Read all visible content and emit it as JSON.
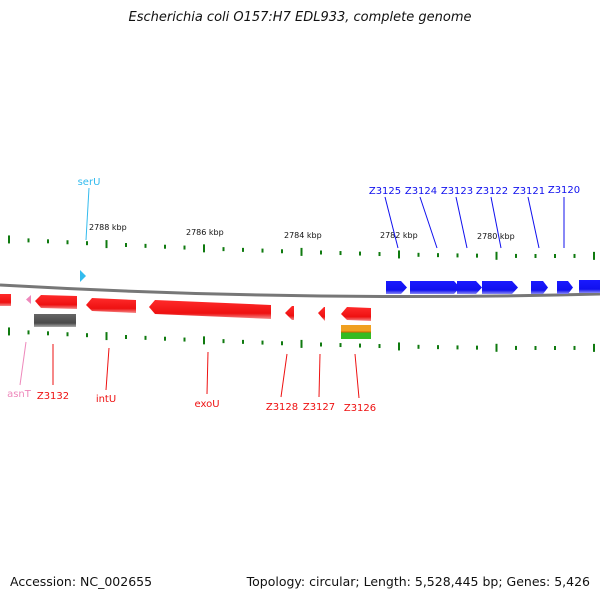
{
  "title": "Escherichia coli O157:H7 EDL933, complete genome",
  "footer": {
    "accession": "Accession: NC_002655",
    "stats": "Topology: circular; Length: 5,528,445 bp; Genes: 5,426"
  },
  "colors": {
    "forward_gene": "#1010ee",
    "reverse_gene": "#ee1111",
    "tRNA_forward": "#33bbee",
    "tRNA_reverse": "#ee88bb",
    "pseudo": "#555555",
    "tick": "#0f7a0f",
    "backbone": "#777777"
  },
  "scale": {
    "unit": "kbp",
    "labels": [
      {
        "text": "2788 kbp",
        "kbp": 2788
      },
      {
        "text": "2786 kbp",
        "kbp": 2786
      },
      {
        "text": "2784 kbp",
        "kbp": 2784
      },
      {
        "text": "2782 kbp",
        "kbp": 2782
      },
      {
        "text": "2780 kbp",
        "kbp": 2780
      }
    ]
  },
  "gene_labels": [
    {
      "name": "serU",
      "strand": "+",
      "kind": "tRNA"
    },
    {
      "name": "Z3125",
      "strand": "+",
      "kind": "gene"
    },
    {
      "name": "Z3124",
      "strand": "+",
      "kind": "gene"
    },
    {
      "name": "Z3123",
      "strand": "+",
      "kind": "gene"
    },
    {
      "name": "Z3122",
      "strand": "+",
      "kind": "gene"
    },
    {
      "name": "Z3121",
      "strand": "+",
      "kind": "gene"
    },
    {
      "name": "Z3120",
      "strand": "+",
      "kind": "gene"
    },
    {
      "name": "asnT",
      "strand": "-",
      "kind": "tRNA"
    },
    {
      "name": "Z3132",
      "strand": "-",
      "kind": "gene"
    },
    {
      "name": "intU",
      "strand": "-",
      "kind": "gene"
    },
    {
      "name": "exoU",
      "strand": "-",
      "kind": "gene"
    },
    {
      "name": "Z3128",
      "strand": "-",
      "kind": "gene"
    },
    {
      "name": "Z3127",
      "strand": "-",
      "kind": "gene"
    },
    {
      "name": "Z3126",
      "strand": "-",
      "kind": "gene"
    }
  ]
}
